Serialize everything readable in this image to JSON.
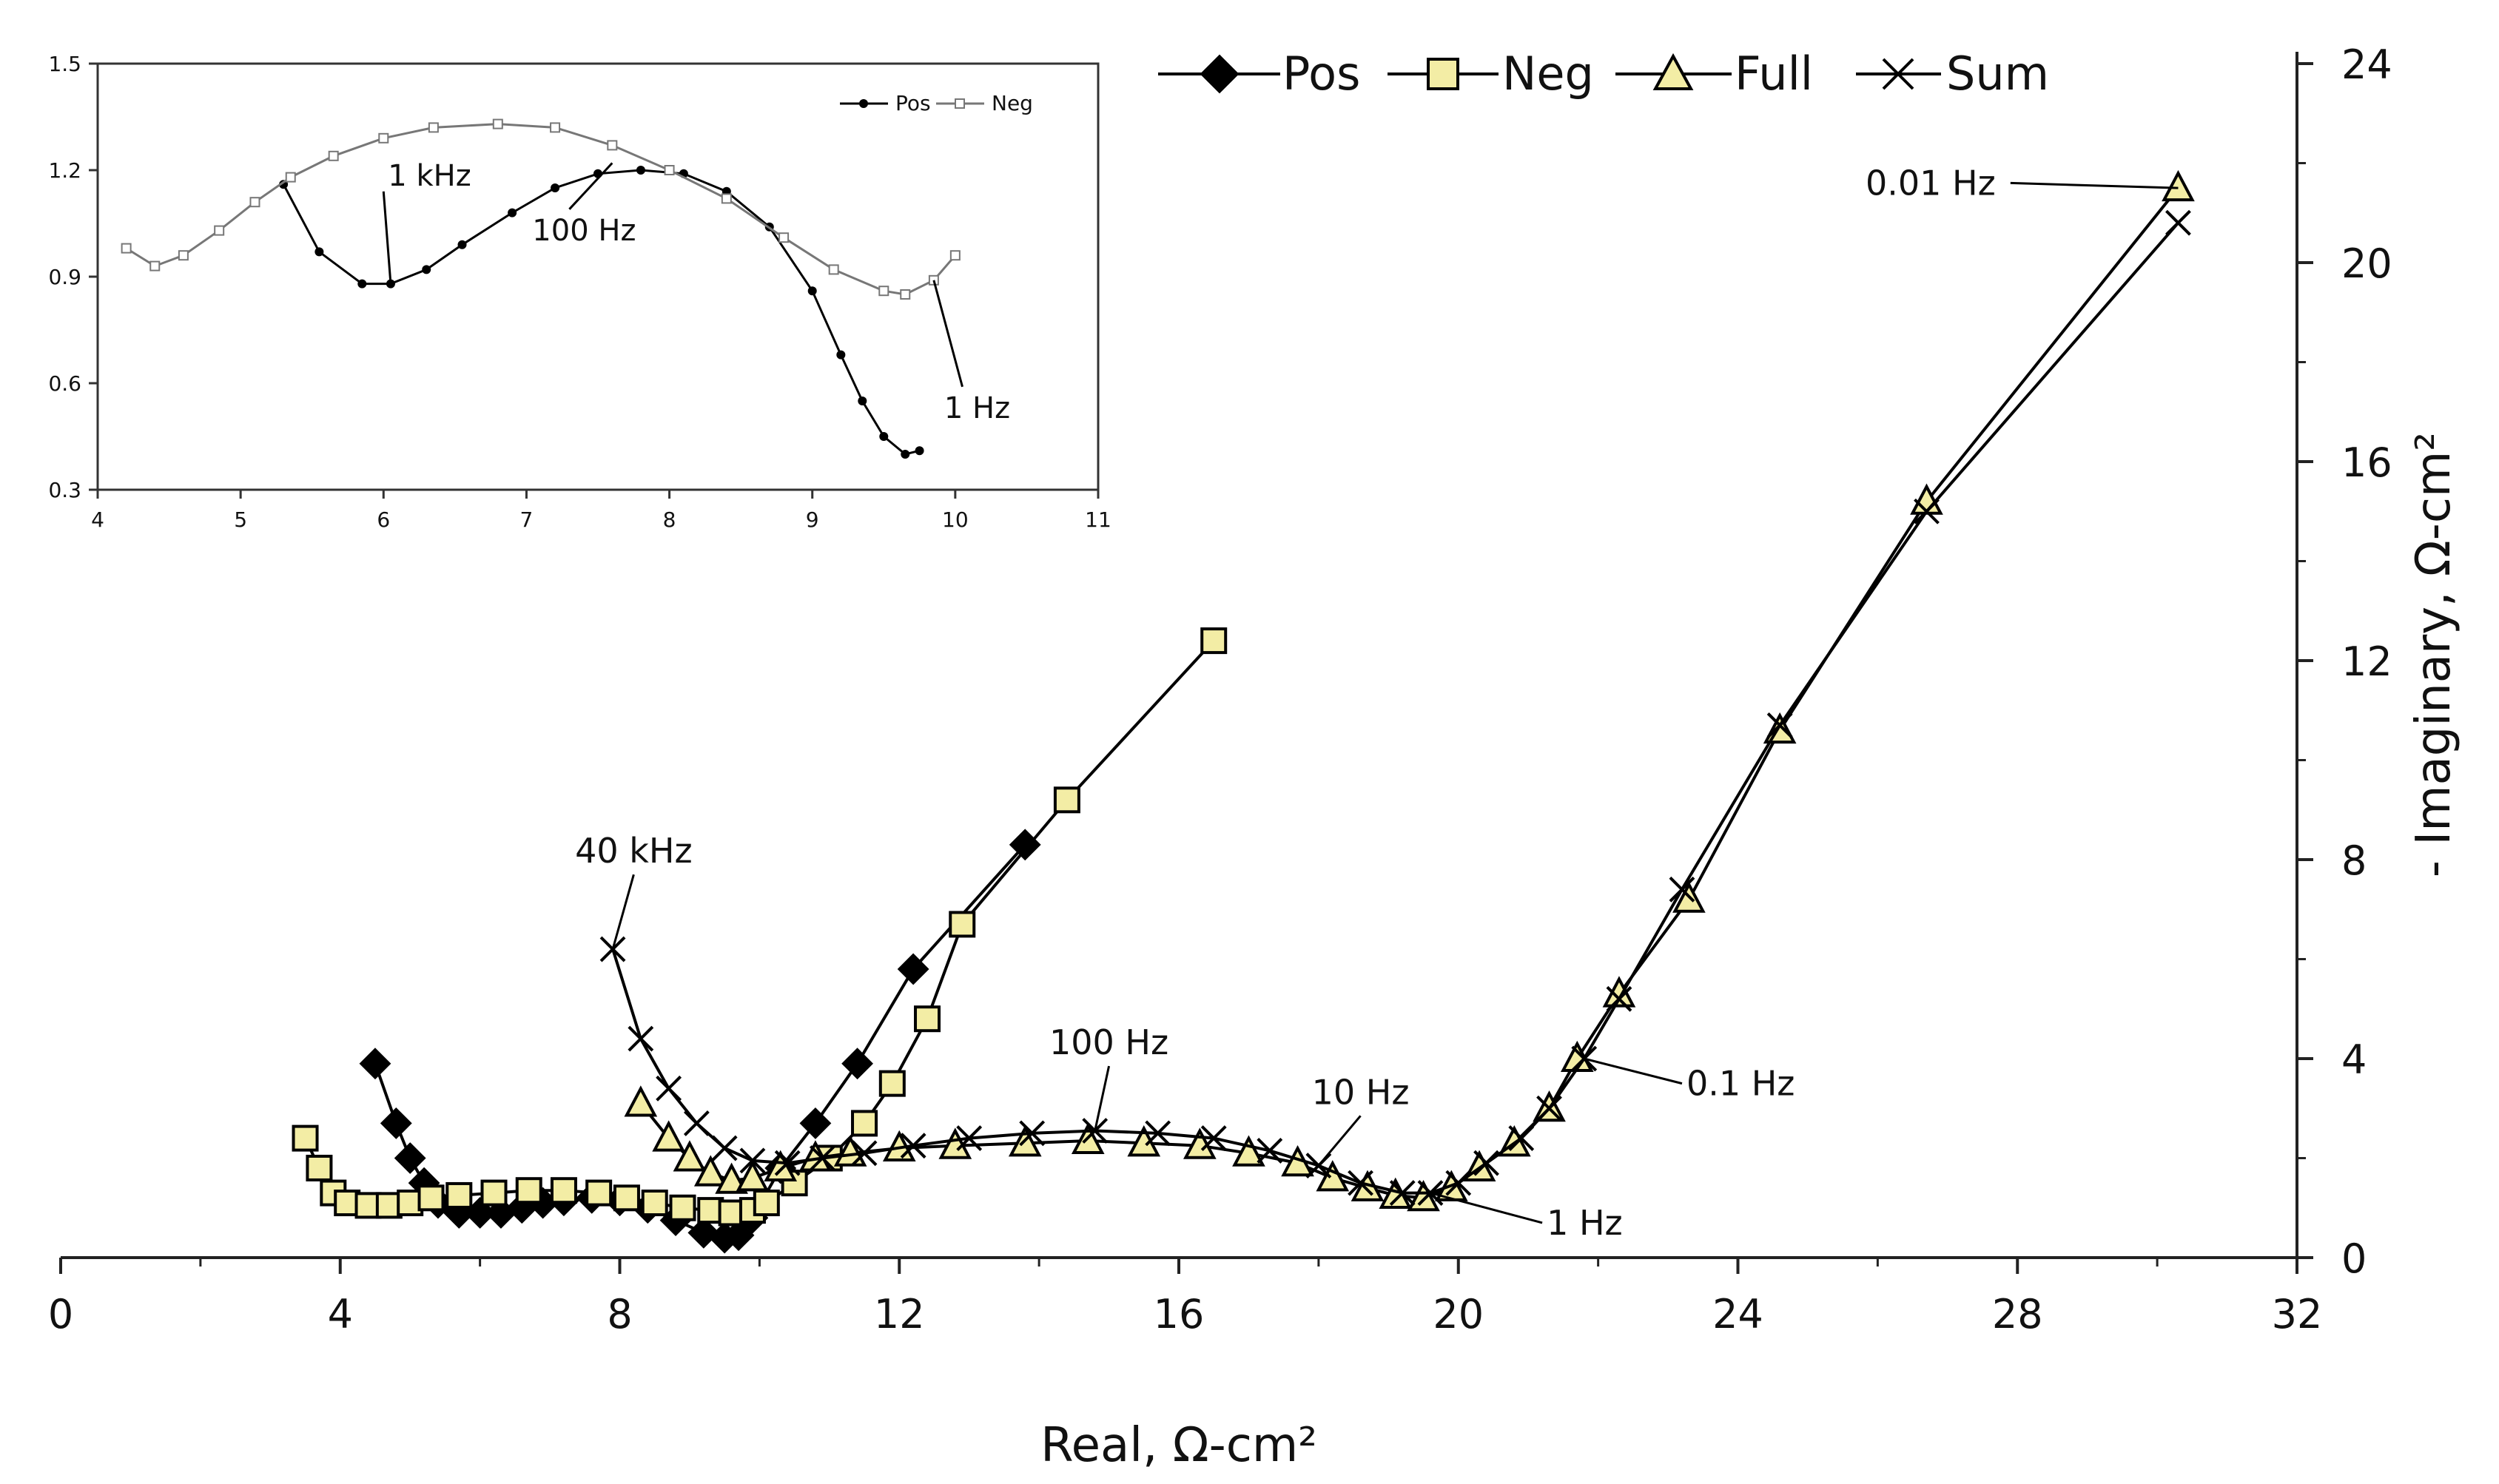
{
  "chart_data": [
    {
      "type": "scatter",
      "xlabel": "Real, Ω-cm²",
      "ylabel": "- Imaginary, Ω-cm²",
      "xlim": [
        0,
        32
      ],
      "ylim": [
        0,
        24
      ],
      "xticks": [
        "0",
        "4",
        "8",
        "12",
        "16",
        "20",
        "24",
        "28",
        "32"
      ],
      "yticks": [
        "0",
        "4",
        "8",
        "12",
        "16",
        "20",
        "24"
      ],
      "legend": [
        "Pos",
        "Neg",
        "Full",
        "Sum"
      ],
      "legend_position": "top",
      "series": [
        {
          "name": "Pos",
          "marker": "diamond",
          "points": [
            [
              4.5,
              3.9
            ],
            [
              4.8,
              2.7
            ],
            [
              5.0,
              2.0
            ],
            [
              5.2,
              1.5
            ],
            [
              5.4,
              1.1
            ],
            [
              5.7,
              0.9
            ],
            [
              6.0,
              0.9
            ],
            [
              6.3,
              0.9
            ],
            [
              6.6,
              1.0
            ],
            [
              6.9,
              1.1
            ],
            [
              7.2,
              1.15
            ],
            [
              7.6,
              1.2
            ],
            [
              8.0,
              1.15
            ],
            [
              8.4,
              1.0
            ],
            [
              8.8,
              0.75
            ],
            [
              9.2,
              0.5
            ],
            [
              9.5,
              0.4
            ],
            [
              9.7,
              0.45
            ],
            [
              9.9,
              0.8
            ],
            [
              10.3,
              1.8
            ],
            [
              10.8,
              2.7
            ],
            [
              11.4,
              3.9
            ],
            [
              12.2,
              5.8
            ],
            [
              13.8,
              8.3
            ]
          ]
        },
        {
          "name": "Neg",
          "marker": "square",
          "points": [
            [
              3.5,
              2.4
            ],
            [
              3.7,
              1.8
            ],
            [
              3.9,
              1.3
            ],
            [
              4.1,
              1.1
            ],
            [
              4.4,
              1.05
            ],
            [
              4.7,
              1.05
            ],
            [
              5.0,
              1.1
            ],
            [
              5.3,
              1.2
            ],
            [
              5.7,
              1.25
            ],
            [
              6.2,
              1.3
            ],
            [
              6.7,
              1.35
            ],
            [
              7.2,
              1.35
            ],
            [
              7.7,
              1.3
            ],
            [
              8.1,
              1.2
            ],
            [
              8.5,
              1.1
            ],
            [
              8.9,
              1.0
            ],
            [
              9.3,
              0.95
            ],
            [
              9.6,
              0.9
            ],
            [
              9.9,
              0.95
            ],
            [
              10.1,
              1.1
            ],
            [
              10.5,
              1.5
            ],
            [
              11.0,
              2.0
            ],
            [
              11.5,
              2.7
            ],
            [
              11.9,
              3.5
            ],
            [
              12.4,
              4.8
            ],
            [
              12.9,
              6.7
            ],
            [
              14.4,
              9.2
            ],
            [
              16.5,
              12.4
            ]
          ]
        },
        {
          "name": "Full",
          "marker": "triangle",
          "points": [
            [
              8.3,
              3.1
            ],
            [
              8.7,
              2.4
            ],
            [
              9.0,
              2.0
            ],
            [
              9.3,
              1.7
            ],
            [
              9.6,
              1.55
            ],
            [
              9.9,
              1.6
            ],
            [
              10.3,
              1.8
            ],
            [
              10.8,
              2.0
            ],
            [
              11.3,
              2.1
            ],
            [
              12.0,
              2.2
            ],
            [
              12.8,
              2.25
            ],
            [
              13.8,
              2.3
            ],
            [
              14.7,
              2.35
            ],
            [
              15.5,
              2.3
            ],
            [
              16.3,
              2.25
            ],
            [
              17.0,
              2.1
            ],
            [
              17.7,
              1.9
            ],
            [
              18.2,
              1.6
            ],
            [
              18.7,
              1.4
            ],
            [
              19.1,
              1.25
            ],
            [
              19.5,
              1.2
            ],
            [
              19.9,
              1.4
            ],
            [
              20.3,
              1.8
            ],
            [
              20.8,
              2.3
            ],
            [
              21.3,
              3.0
            ],
            [
              21.7,
              4.0
            ],
            [
              22.3,
              5.3
            ],
            [
              23.3,
              7.2
            ],
            [
              24.6,
              10.6
            ],
            [
              26.7,
              15.2
            ],
            [
              30.3,
              21.5
            ]
          ]
        },
        {
          "name": "Sum",
          "marker": "x",
          "points": [
            [
              7.9,
              6.2
            ],
            [
              8.3,
              4.4
            ],
            [
              8.7,
              3.4
            ],
            [
              9.1,
              2.7
            ],
            [
              9.5,
              2.2
            ],
            [
              9.9,
              1.95
            ],
            [
              10.4,
              1.9
            ],
            [
              10.9,
              2.0
            ],
            [
              11.5,
              2.1
            ],
            [
              12.2,
              2.25
            ],
            [
              13.0,
              2.4
            ],
            [
              13.9,
              2.5
            ],
            [
              14.8,
              2.55
            ],
            [
              15.7,
              2.5
            ],
            [
              16.5,
              2.4
            ],
            [
              17.3,
              2.15
            ],
            [
              18.0,
              1.85
            ],
            [
              18.6,
              1.5
            ],
            [
              19.2,
              1.3
            ],
            [
              19.6,
              1.3
            ],
            [
              20.0,
              1.5
            ],
            [
              20.4,
              1.9
            ],
            [
              20.9,
              2.4
            ],
            [
              21.3,
              3.0
            ],
            [
              21.8,
              4.0
            ],
            [
              22.3,
              5.2
            ],
            [
              23.2,
              7.4
            ],
            [
              24.6,
              10.7
            ],
            [
              26.7,
              15.0
            ],
            [
              30.3,
              20.8
            ]
          ]
        }
      ],
      "annotations": [
        {
          "text": "40 kHz",
          "x": 7.9,
          "y": 6.2,
          "dx": 0.3,
          "dy": 1.5
        },
        {
          "text": "100 Hz",
          "x": 14.8,
          "y": 2.55,
          "dx": 0.2,
          "dy": 1.3
        },
        {
          "text": "10 Hz",
          "x": 18.0,
          "y": 1.85,
          "dx": 0.6,
          "dy": 1.0
        },
        {
          "text": "1 Hz",
          "x": 19.6,
          "y": 1.3,
          "dx": 1.6,
          "dy": -0.6
        },
        {
          "text": "0.1 Hz",
          "x": 21.8,
          "y": 4.0,
          "dx": 1.4,
          "dy": -0.5
        },
        {
          "text": "0.01 Hz",
          "x": 30.3,
          "y": 21.5,
          "dx": -2.4,
          "dy": 0.1
        }
      ]
    },
    {
      "type": "scatter",
      "xlim": [
        4,
        11
      ],
      "ylim": [
        0.3,
        1.5
      ],
      "xticks": [
        "4",
        "5",
        "6",
        "7",
        "8",
        "9",
        "10",
        "11"
      ],
      "yticks": [
        "0.3",
        "0.6",
        "0.9",
        "1.2",
        "1.5"
      ],
      "legend": [
        "Pos",
        "Neg"
      ],
      "legend_position": "top-right",
      "series": [
        {
          "name": "Pos",
          "points": [
            [
              5.3,
              1.16
            ],
            [
              5.55,
              0.97
            ],
            [
              5.85,
              0.88
            ],
            [
              6.05,
              0.88
            ],
            [
              6.3,
              0.92
            ],
            [
              6.55,
              0.99
            ],
            [
              6.9,
              1.08
            ],
            [
              7.2,
              1.15
            ],
            [
              7.5,
              1.19
            ],
            [
              7.8,
              1.2
            ],
            [
              8.1,
              1.19
            ],
            [
              8.4,
              1.14
            ],
            [
              8.7,
              1.04
            ],
            [
              9.0,
              0.86
            ],
            [
              9.2,
              0.68
            ],
            [
              9.35,
              0.55
            ],
            [
              9.5,
              0.45
            ],
            [
              9.65,
              0.4
            ],
            [
              9.75,
              0.41
            ]
          ]
        },
        {
          "name": "Neg",
          "points": [
            [
              4.2,
              0.98
            ],
            [
              4.4,
              0.93
            ],
            [
              4.6,
              0.96
            ],
            [
              4.85,
              1.03
            ],
            [
              5.1,
              1.11
            ],
            [
              5.35,
              1.18
            ],
            [
              5.65,
              1.24
            ],
            [
              6.0,
              1.29
            ],
            [
              6.35,
              1.32
            ],
            [
              6.8,
              1.33
            ],
            [
              7.2,
              1.32
            ],
            [
              7.6,
              1.27
            ],
            [
              8.0,
              1.2
            ],
            [
              8.4,
              1.12
            ],
            [
              8.8,
              1.01
            ],
            [
              9.15,
              0.92
            ],
            [
              9.5,
              0.86
            ],
            [
              9.65,
              0.85
            ],
            [
              9.85,
              0.89
            ],
            [
              10.0,
              0.96
            ]
          ]
        }
      ],
      "annotations": [
        {
          "text": "1 kHz",
          "x": 6.05,
          "y": 0.88,
          "dx": -0.05,
          "dy": 0.26
        },
        {
          "text": "100 Hz",
          "x": 7.6,
          "y": 1.22,
          "dx": -0.3,
          "dy": -0.13
        },
        {
          "text": "1 Hz",
          "x": 9.85,
          "y": 0.89,
          "dx": 0.2,
          "dy": -0.3
        }
      ]
    }
  ]
}
